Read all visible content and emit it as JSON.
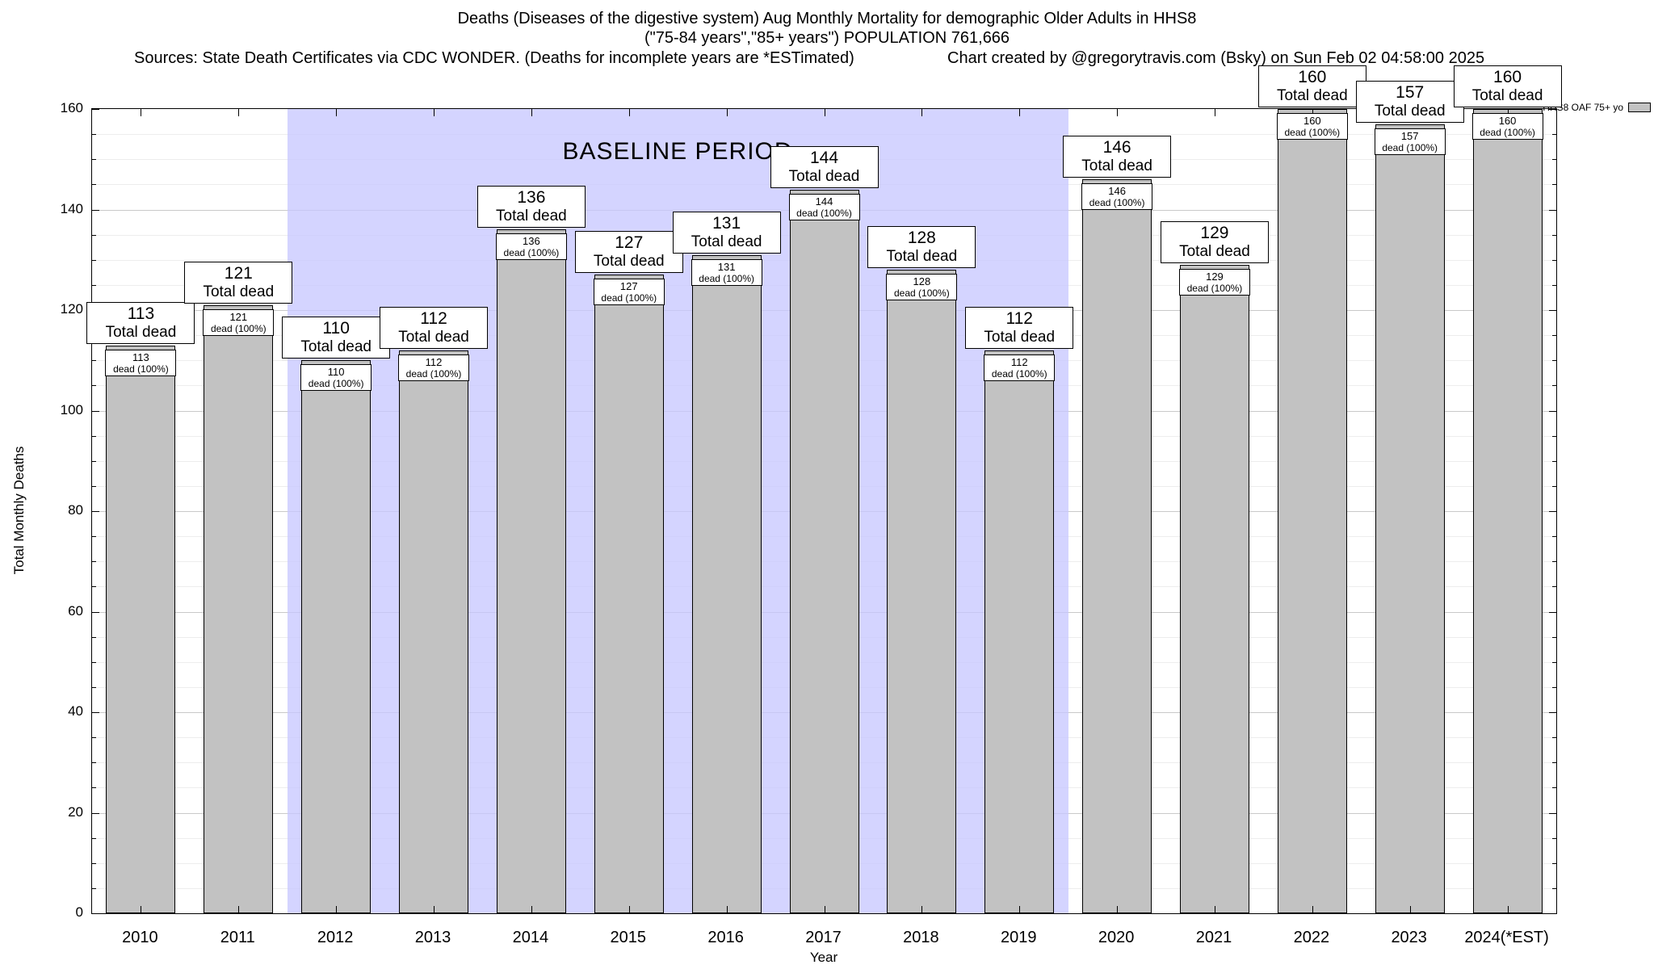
{
  "header": {
    "title_line1": "Deaths (Diseases of the digestive system) Aug Monthly Mortality for demographic Older Adults in HHS8",
    "title_line2": "(\"75-84 years\",\"85+ years\") POPULATION 761,666",
    "sources": "Sources: State Death Certificates via CDC WONDER. (Deaths for incomplete years are *ESTimated)",
    "credit": "Chart created by @gregorytravis.com (Bsky) on Sun Feb 02 04:58:00 2025"
  },
  "chart_data": {
    "type": "bar",
    "title": "Deaths (Diseases of the digestive system) Aug Monthly Mortality for demographic Older Adults in HHS8",
    "subtitle": "(\"75-84 years\",\"85+ years\") POPULATION 761,666",
    "categories": [
      "2010",
      "2011",
      "2012",
      "2013",
      "2014",
      "2015",
      "2016",
      "2017",
      "2018",
      "2019",
      "2020",
      "2021",
      "2022",
      "2023",
      "2024(*EST)"
    ],
    "values": [
      113,
      121,
      110,
      112,
      136,
      127,
      131,
      144,
      128,
      112,
      146,
      129,
      160,
      157,
      160
    ],
    "bar_label_suffix": "Total dead",
    "inner_label_suffix": "dead (100%)",
    "xlabel": "Year",
    "ylabel": "Total Monthly Deaths",
    "ylim": [
      0,
      160
    ],
    "ytick_step": 20,
    "grid": "horizontal",
    "baseline": {
      "label": "BASELINE PERIOD",
      "start_index": 2,
      "end_index": 9
    },
    "legend": {
      "label": "HHS8 OAF 75+ yo",
      "position": "top-right"
    },
    "colors": {
      "bar": "#c2c2c2",
      "baseline_band": "#ccccff",
      "grid_major": "#c9c9c9"
    }
  }
}
